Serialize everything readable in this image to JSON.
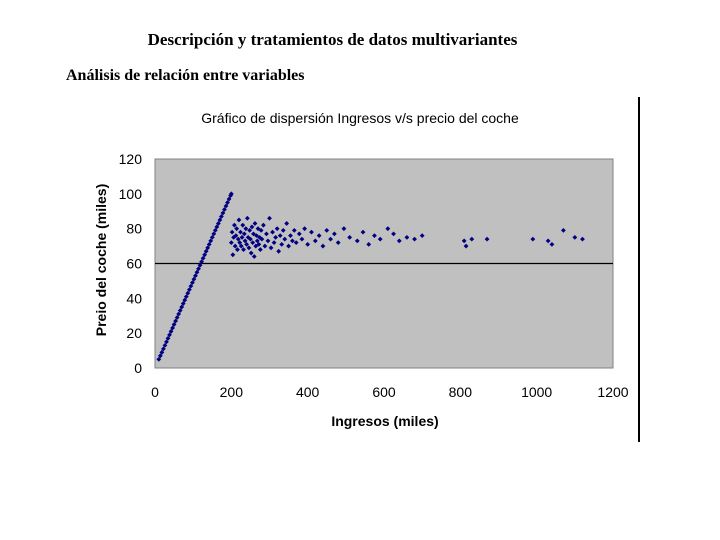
{
  "page": {
    "title": "Descripción y tratamientos de datos multivariantes",
    "subtitle": "Análisis de relación entre variables"
  },
  "colors": {
    "plot_background": "#c0c0c0",
    "marker": "#000080",
    "reference_line": "#000000"
  },
  "chart_data": {
    "type": "scatter",
    "title": "Gráfico de dispersión Ingresos v/s precio del coche",
    "xlabel": "Ingresos (miles)",
    "ylabel": "Preio del coche (miles)",
    "xlim": [
      0,
      1200
    ],
    "ylim": [
      0,
      120
    ],
    "xticks": [
      "0",
      "200",
      "400",
      "600",
      "800",
      "1000",
      "1200"
    ],
    "yticks": [
      "0",
      "20",
      "40",
      "60",
      "80",
      "100",
      "120"
    ],
    "grid": false,
    "legend": "none",
    "reference_line_y": 60,
    "marker": "diamond",
    "series": [
      {
        "points": [
          [
            10,
            5
          ],
          [
            14,
            7
          ],
          [
            18,
            9
          ],
          [
            22,
            11
          ],
          [
            26,
            13
          ],
          [
            30,
            15
          ],
          [
            34,
            17
          ],
          [
            38,
            19
          ],
          [
            42,
            21
          ],
          [
            46,
            23
          ],
          [
            50,
            25
          ],
          [
            54,
            27
          ],
          [
            58,
            29
          ],
          [
            62,
            31
          ],
          [
            66,
            33
          ],
          [
            70,
            35
          ],
          [
            74,
            37
          ],
          [
            78,
            39
          ],
          [
            82,
            41
          ],
          [
            86,
            43
          ],
          [
            90,
            45
          ],
          [
            94,
            47
          ],
          [
            98,
            49
          ],
          [
            102,
            51
          ],
          [
            106,
            53
          ],
          [
            110,
            55
          ],
          [
            114,
            57
          ],
          [
            118,
            59
          ],
          [
            122,
            61
          ],
          [
            126,
            63
          ],
          [
            130,
            65
          ],
          [
            134,
            67
          ],
          [
            138,
            69
          ],
          [
            142,
            71
          ],
          [
            146,
            73
          ],
          [
            150,
            75
          ],
          [
            154,
            77
          ],
          [
            158,
            79
          ],
          [
            162,
            81
          ],
          [
            166,
            83
          ],
          [
            170,
            85
          ],
          [
            174,
            87
          ],
          [
            178,
            89
          ],
          [
            182,
            91
          ],
          [
            186,
            93
          ],
          [
            190,
            95
          ],
          [
            194,
            97
          ],
          [
            198,
            99
          ],
          [
            200,
            100
          ],
          [
            200,
            72
          ],
          [
            202,
            78
          ],
          [
            204,
            65
          ],
          [
            206,
            75
          ],
          [
            208,
            82
          ],
          [
            210,
            70
          ],
          [
            212,
            76
          ],
          [
            214,
            80
          ],
          [
            216,
            68
          ],
          [
            218,
            74
          ],
          [
            220,
            85
          ],
          [
            222,
            72
          ],
          [
            224,
            78
          ],
          [
            226,
            70
          ],
          [
            228,
            75
          ],
          [
            230,
            82
          ],
          [
            232,
            68
          ],
          [
            234,
            77
          ],
          [
            236,
            73
          ],
          [
            238,
            80
          ],
          [
            240,
            71
          ],
          [
            242,
            86
          ],
          [
            244,
            75
          ],
          [
            246,
            69
          ],
          [
            248,
            79
          ],
          [
            250,
            74
          ],
          [
            252,
            66
          ],
          [
            254,
            81
          ],
          [
            256,
            72
          ],
          [
            258,
            77
          ],
          [
            260,
            64
          ],
          [
            262,
            83
          ],
          [
            264,
            70
          ],
          [
            266,
            76
          ],
          [
            268,
            73
          ],
          [
            270,
            80
          ],
          [
            272,
            71
          ],
          [
            274,
            75
          ],
          [
            276,
            68
          ],
          [
            278,
            79
          ],
          [
            280,
            74
          ],
          [
            284,
            82
          ],
          [
            288,
            70
          ],
          [
            292,
            77
          ],
          [
            296,
            73
          ],
          [
            300,
            86
          ],
          [
            304,
            69
          ],
          [
            308,
            78
          ],
          [
            312,
            72
          ],
          [
            316,
            75
          ],
          [
            320,
            80
          ],
          [
            324,
            67
          ],
          [
            328,
            76
          ],
          [
            332,
            71
          ],
          [
            336,
            79
          ],
          [
            340,
            74
          ],
          [
            345,
            83
          ],
          [
            350,
            70
          ],
          [
            355,
            76
          ],
          [
            360,
            73
          ],
          [
            365,
            79
          ],
          [
            370,
            72
          ],
          [
            378,
            77
          ],
          [
            385,
            74
          ],
          [
            392,
            80
          ],
          [
            400,
            71
          ],
          [
            410,
            78
          ],
          [
            420,
            73
          ],
          [
            430,
            76
          ],
          [
            440,
            70
          ],
          [
            450,
            79
          ],
          [
            460,
            74
          ],
          [
            470,
            77
          ],
          [
            480,
            72
          ],
          [
            495,
            80
          ],
          [
            510,
            75
          ],
          [
            530,
            73
          ],
          [
            545,
            78
          ],
          [
            560,
            71
          ],
          [
            575,
            76
          ],
          [
            590,
            74
          ],
          [
            610,
            80
          ],
          [
            625,
            77
          ],
          [
            640,
            73
          ],
          [
            660,
            75
          ],
          [
            680,
            74
          ],
          [
            700,
            76
          ],
          [
            810,
            73
          ],
          [
            815,
            70
          ],
          [
            830,
            74
          ],
          [
            870,
            74
          ],
          [
            990,
            74
          ],
          [
            1030,
            73
          ],
          [
            1040,
            71
          ],
          [
            1070,
            79
          ],
          [
            1100,
            75
          ],
          [
            1120,
            74
          ]
        ]
      }
    ]
  }
}
